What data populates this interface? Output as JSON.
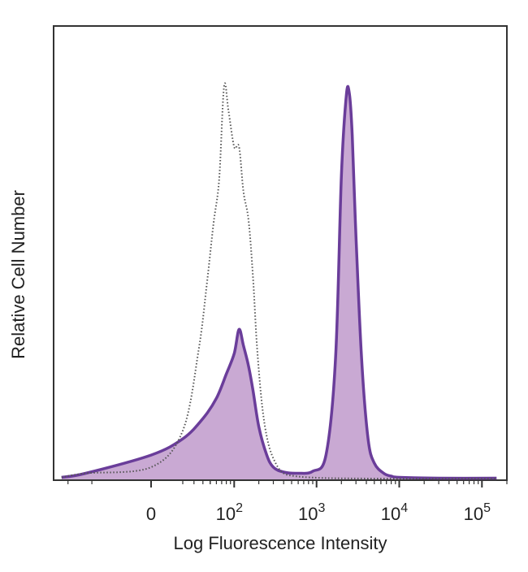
{
  "chart_data": {
    "type": "area",
    "title": "",
    "xlabel": "Log Fluorescence Intensity",
    "ylabel": "Relative Cell Number",
    "x_scale": "biexponential",
    "xlim": [
      -150,
      200000
    ],
    "ylim": [
      0,
      100
    ],
    "grid": false,
    "legend": "none",
    "x_ticks": [
      {
        "value": 0,
        "base": "0",
        "exp": ""
      },
      {
        "value": 100,
        "base": "10",
        "exp": "2"
      },
      {
        "value": 1000,
        "base": "10",
        "exp": "3"
      },
      {
        "value": 10000,
        "base": "10",
        "exp": "4"
      },
      {
        "value": 100000,
        "base": "10",
        "exp": "5"
      }
    ],
    "series": [
      {
        "style": "dotted-outline",
        "color": "#555555",
        "x": [
          -120,
          -60,
          0,
          20,
          35,
          45,
          55,
          65,
          75,
          85,
          100,
          115,
          130,
          150,
          170,
          190,
          220,
          260,
          320,
          400,
          550,
          800,
          1500,
          5000,
          20000,
          150000
        ],
        "y": [
          0.5,
          1.5,
          3,
          12,
          32,
          48,
          63,
          74,
          97,
          91,
          82,
          82,
          71,
          64,
          50,
          33,
          18,
          9,
          4,
          1.5,
          0.8,
          0.5,
          0.3,
          0.2,
          0.2,
          0.2
        ]
      },
      {
        "style": "filled",
        "color": "#6a3d9a",
        "fill": "#c9a9d3",
        "x": [
          -120,
          -60,
          0,
          20,
          40,
          60,
          80,
          100,
          115,
          130,
          150,
          170,
          200,
          250,
          300,
          400,
          600,
          900,
          1300,
          1700,
          2000,
          2300,
          2500,
          2700,
          3000,
          3500,
          4200,
          5000,
          6500,
          8000,
          10000,
          30000,
          150000
        ],
        "y": [
          0.5,
          1.5,
          6,
          10,
          15,
          20,
          26,
          31,
          37,
          33,
          28,
          22,
          13,
          6,
          3,
          1.8,
          1.5,
          2,
          6,
          30,
          75,
          95,
          95,
          85,
          60,
          30,
          10,
          4,
          1.5,
          0.8,
          0.5,
          0.3,
          0.3
        ]
      }
    ]
  }
}
